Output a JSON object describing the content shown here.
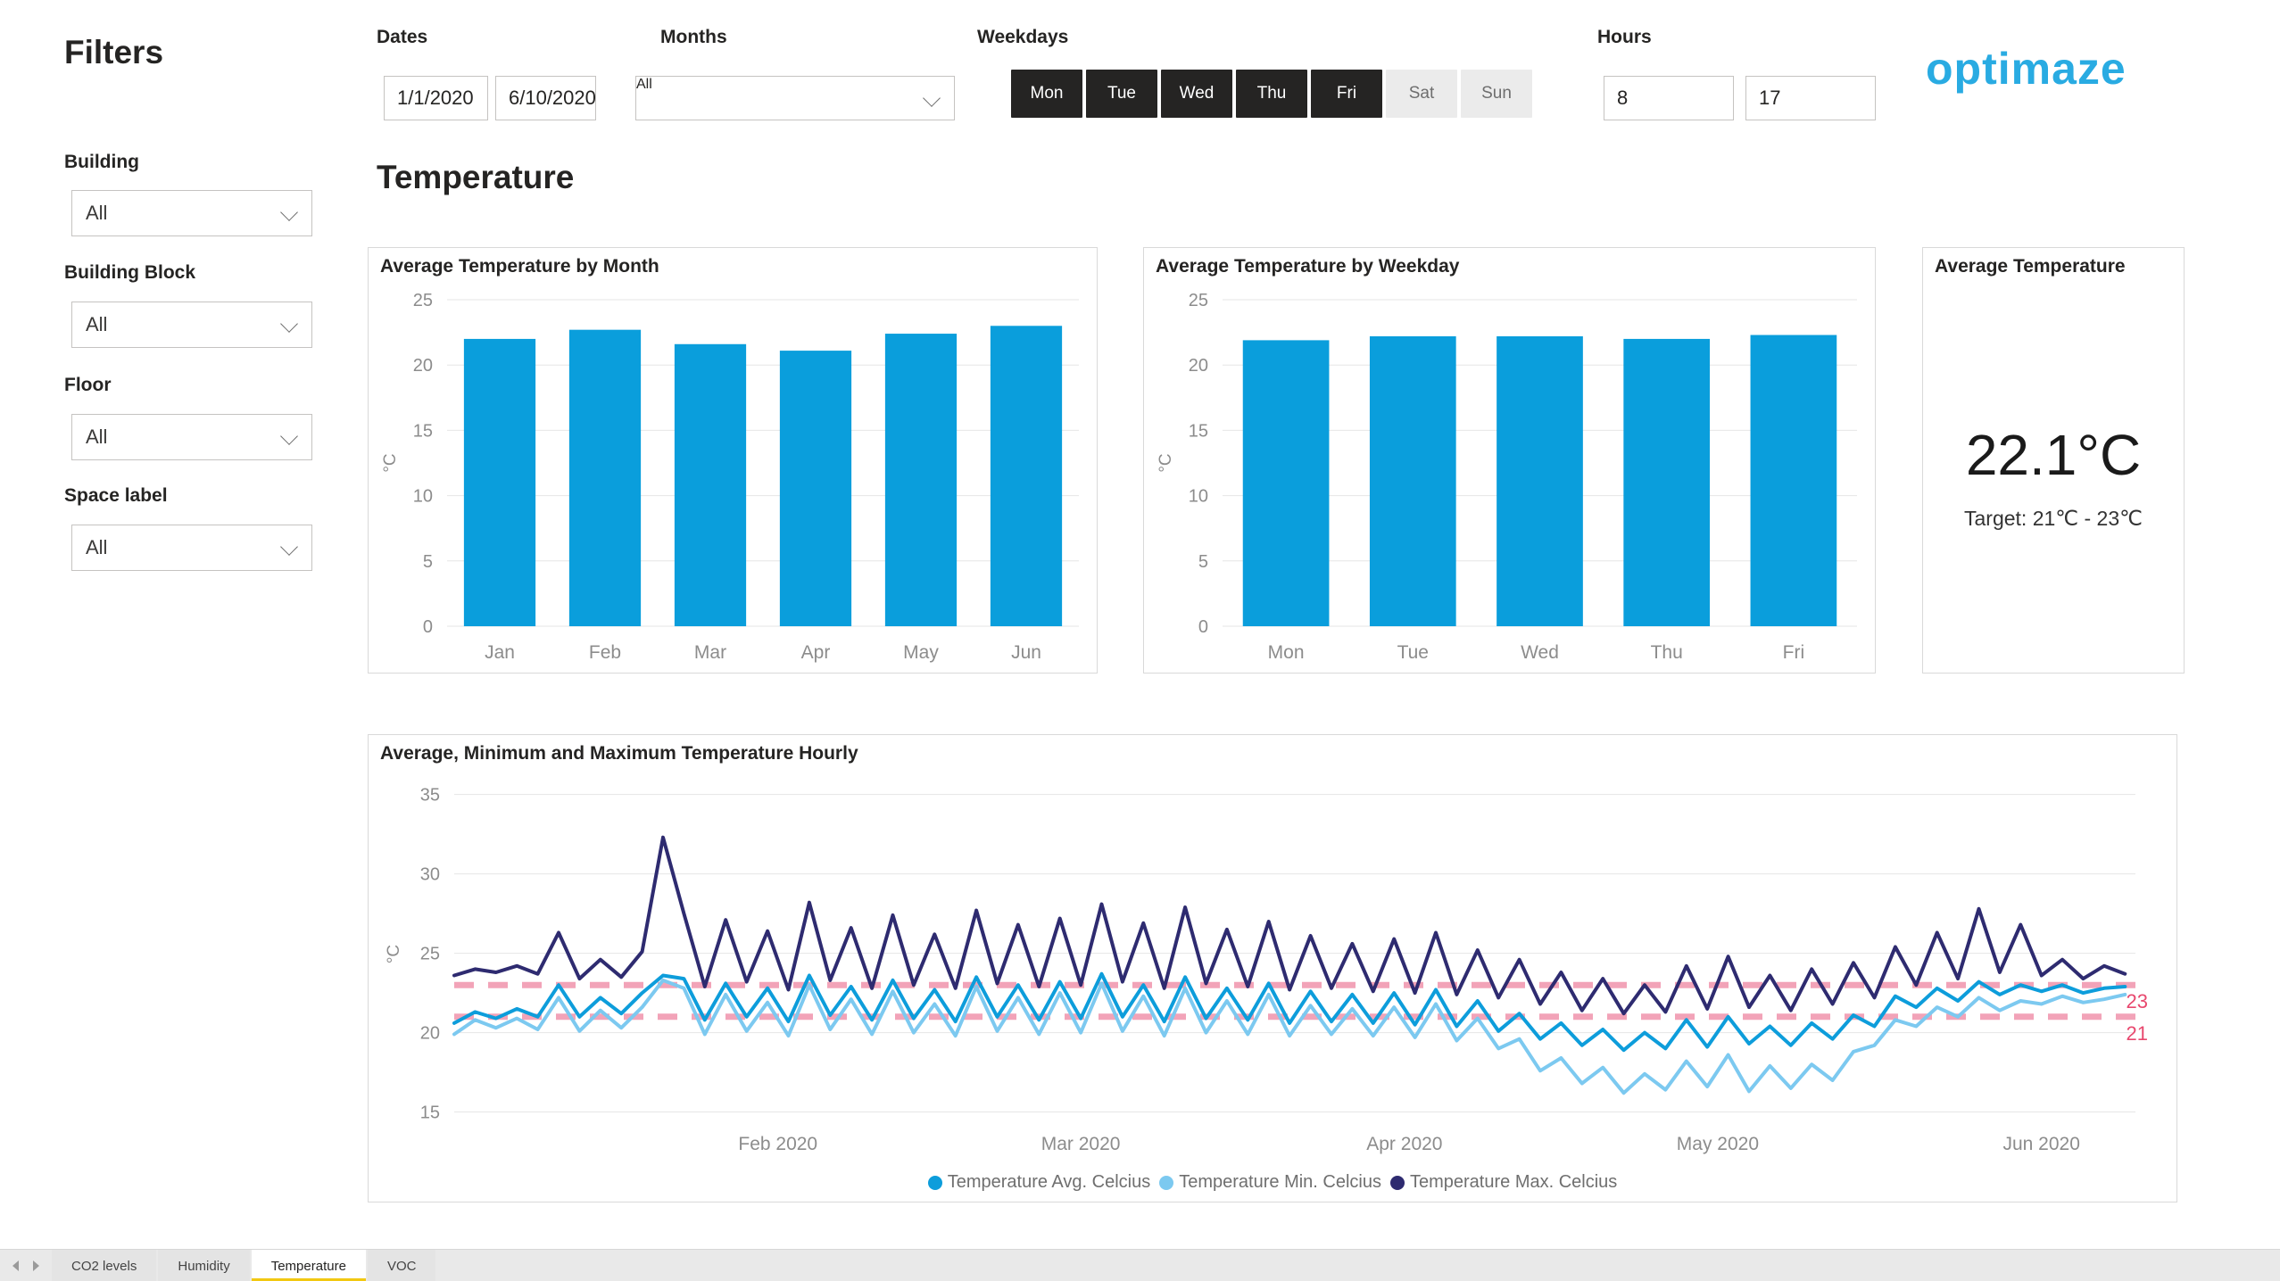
{
  "sidebar": {
    "title": "Filters",
    "fields": [
      {
        "label": "Building",
        "value": "All"
      },
      {
        "label": "Building Block",
        "value": "All"
      },
      {
        "label": "Floor",
        "value": "All"
      },
      {
        "label": "Space label",
        "value": "All"
      }
    ]
  },
  "topbar": {
    "dates": {
      "label": "Dates",
      "from": "1/1/2020",
      "to": "6/10/2020"
    },
    "months": {
      "label": "Months",
      "value": "All"
    },
    "weekdays": {
      "label": "Weekdays",
      "days": [
        {
          "label": "Mon",
          "selected": true
        },
        {
          "label": "Tue",
          "selected": true
        },
        {
          "label": "Wed",
          "selected": true
        },
        {
          "label": "Thu",
          "selected": true
        },
        {
          "label": "Fri",
          "selected": true
        },
        {
          "label": "Sat",
          "selected": false
        },
        {
          "label": "Sun",
          "selected": false
        }
      ]
    },
    "hours": {
      "label": "Hours",
      "from": "8",
      "to": "17"
    },
    "logo": "optimaze"
  },
  "page_title": "Temperature",
  "card": {
    "title": "Average Temperature",
    "value": "22.1°C",
    "target": "Target: 21℃ - 23℃"
  },
  "tabs": [
    {
      "label": "CO2 levels",
      "active": false
    },
    {
      "label": "Humidity",
      "active": false
    },
    {
      "label": "Temperature",
      "active": true
    },
    {
      "label": "VOC",
      "active": false
    }
  ],
  "colors": {
    "bar": "#0a9edc",
    "avg": "#0d9ddb",
    "min": "#7cc9f0",
    "max": "#2e2b70",
    "target_line": "#f2a3b8",
    "target_label": "#e8486e",
    "grid": "#e6e6e6",
    "axis_text": "#8c8c8c",
    "tab_underline": "#f2c811",
    "logo": "#29abe2"
  },
  "chart_data": [
    {
      "type": "bar",
      "title": "Average Temperature by Month",
      "categories": [
        "Jan",
        "Feb",
        "Mar",
        "Apr",
        "May",
        "Jun"
      ],
      "values": [
        22.0,
        22.7,
        21.6,
        21.1,
        22.4,
        23.0
      ],
      "xlabel": "",
      "ylabel": "°C",
      "ylim": [
        0,
        25
      ],
      "yticks": [
        0,
        5,
        10,
        15,
        20,
        25
      ],
      "color": "#0a9edc",
      "grid": true,
      "legend_position": "none"
    },
    {
      "type": "bar",
      "title": "Average Temperature by Weekday",
      "categories": [
        "Mon",
        "Tue",
        "Wed",
        "Thu",
        "Fri"
      ],
      "values": [
        21.9,
        22.2,
        22.2,
        22.0,
        22.3
      ],
      "xlabel": "",
      "ylabel": "°C",
      "ylim": [
        0,
        25
      ],
      "yticks": [
        0,
        5,
        10,
        15,
        20,
        25
      ],
      "color": "#0a9edc",
      "grid": true,
      "legend_position": "none"
    },
    {
      "type": "line",
      "title": "Average, Minimum and Maximum Temperature Hourly",
      "ylabel": "°C",
      "ylim": [
        14.3,
        35.6
      ],
      "yticks": [
        15,
        20,
        25,
        30,
        35
      ],
      "x_unit": "days since 1/1/2020, hourly data filtered to hours 8-17, Mon-Fri",
      "x_domain": [
        0,
        161
      ],
      "xticks": [
        {
          "day": 31,
          "label": "Feb 2020"
        },
        {
          "day": 60,
          "label": "Mar 2020"
        },
        {
          "day": 91,
          "label": "Apr 2020"
        },
        {
          "day": 121,
          "label": "May 2020"
        },
        {
          "day": 152,
          "label": "Jun 2020"
        }
      ],
      "target_lines": [
        {
          "value": 23,
          "label": "23"
        },
        {
          "value": 21,
          "label": "21"
        }
      ],
      "grid": true,
      "legend_position": "bottom",
      "x": [
        0,
        2,
        4,
        6,
        8,
        10,
        12,
        14,
        16,
        18,
        20,
        22,
        24,
        26,
        28,
        30,
        32,
        34,
        36,
        38,
        40,
        42,
        44,
        46,
        48,
        50,
        52,
        54,
        56,
        58,
        60,
        62,
        64,
        66,
        68,
        70,
        72,
        74,
        76,
        78,
        80,
        82,
        84,
        86,
        88,
        90,
        92,
        94,
        96,
        98,
        100,
        102,
        104,
        106,
        108,
        110,
        112,
        114,
        116,
        118,
        120,
        122,
        124,
        126,
        128,
        130,
        132,
        134,
        136,
        138,
        140,
        142,
        144,
        146,
        148,
        150,
        152,
        154,
        156,
        158,
        160
      ],
      "series": [
        {
          "name": "Temperature Avg. Celcius",
          "color": "#0d9ddb",
          "values": [
            20.6,
            21.3,
            20.9,
            21.5,
            21.0,
            23.0,
            21.0,
            22.2,
            21.2,
            22.5,
            23.6,
            23.4,
            20.8,
            23.1,
            21.0,
            22.8,
            20.7,
            23.6,
            21.1,
            22.9,
            20.8,
            23.3,
            20.9,
            22.7,
            20.7,
            23.5,
            21.0,
            23.0,
            20.8,
            23.2,
            20.9,
            23.7,
            21.0,
            23.0,
            20.7,
            23.5,
            20.9,
            22.8,
            20.8,
            23.1,
            20.6,
            22.6,
            20.7,
            22.4,
            20.6,
            22.5,
            20.5,
            22.7,
            20.4,
            22.0,
            20.1,
            21.2,
            19.6,
            20.6,
            19.2,
            20.2,
            18.9,
            20.0,
            19.0,
            20.8,
            19.1,
            21.0,
            19.3,
            20.4,
            19.2,
            20.6,
            19.6,
            21.1,
            20.4,
            22.3,
            21.6,
            22.8,
            22.0,
            23.2,
            22.4,
            23.0,
            22.6,
            23.0,
            22.5,
            22.8,
            22.9
          ]
        },
        {
          "name": "Temperature Min. Celcius",
          "color": "#7cc9f0",
          "values": [
            19.9,
            20.8,
            20.3,
            20.9,
            20.2,
            22.2,
            20.1,
            21.4,
            20.3,
            21.6,
            23.3,
            22.8,
            19.9,
            22.4,
            20.1,
            21.9,
            19.8,
            23.0,
            20.2,
            22.1,
            19.9,
            22.6,
            20.0,
            21.8,
            19.8,
            22.9,
            20.1,
            22.2,
            19.9,
            22.5,
            20.0,
            23.1,
            20.1,
            22.3,
            19.8,
            22.8,
            20.0,
            22.0,
            19.9,
            22.4,
            19.8,
            21.7,
            19.9,
            21.5,
            19.8,
            21.6,
            19.7,
            21.8,
            19.5,
            20.9,
            19.0,
            19.6,
            17.6,
            18.4,
            16.8,
            17.8,
            16.2,
            17.4,
            16.4,
            18.2,
            16.6,
            18.6,
            16.3,
            17.9,
            16.5,
            18.0,
            17.0,
            18.8,
            19.2,
            20.8,
            20.4,
            21.6,
            21.0,
            22.2,
            21.4,
            22.0,
            21.8,
            22.3,
            21.9,
            22.1,
            22.4
          ]
        },
        {
          "name": "Temperature Max. Celcius",
          "color": "#2e2b70",
          "values": [
            23.6,
            24.0,
            23.8,
            24.2,
            23.7,
            26.3,
            23.4,
            24.6,
            23.5,
            25.1,
            32.3,
            27.5,
            22.9,
            27.1,
            23.2,
            26.4,
            22.7,
            28.2,
            23.3,
            26.6,
            22.8,
            27.4,
            23.0,
            26.2,
            22.8,
            27.7,
            23.1,
            26.8,
            22.9,
            27.2,
            23.0,
            28.1,
            23.2,
            26.9,
            22.8,
            27.9,
            23.1,
            26.5,
            22.9,
            27.0,
            22.7,
            26.1,
            22.8,
            25.6,
            22.6,
            25.9,
            22.5,
            26.3,
            22.4,
            25.2,
            22.2,
            24.6,
            21.8,
            23.8,
            21.4,
            23.4,
            21.2,
            23.0,
            21.3,
            24.2,
            21.5,
            24.8,
            21.6,
            23.6,
            21.4,
            24.0,
            21.8,
            24.4,
            22.2,
            25.4,
            23.0,
            26.3,
            23.4,
            27.8,
            23.8,
            26.8,
            23.6,
            24.6,
            23.4,
            24.2,
            23.7
          ]
        }
      ]
    }
  ]
}
